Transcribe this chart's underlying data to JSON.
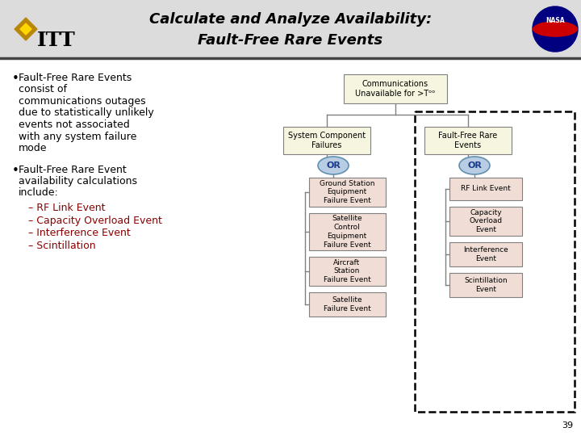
{
  "title_line1": "Calculate and Analyze Availability:",
  "title_line2": "Fault-Free Rare Events",
  "slide_bg": "#ffffff",
  "header_bg": "#e0e0e0",
  "box_fill_light": "#f5f5e0",
  "box_fill_pink": "#f0ddd5",
  "or_fill": "#b8cce4",
  "bullet1_lines": [
    "Fault-Free Rare Events",
    "consist of",
    "communications outages",
    "due to statistically unlikely",
    "events not associated",
    "with any system failure",
    "mode"
  ],
  "bullet2_lines": [
    "Fault-Free Rare Event",
    "availability calculations",
    "include:"
  ],
  "sub_bullets": [
    "– RF Link Event",
    "– Capacity Overload Event",
    "– Interference Event",
    "– Scintillation"
  ],
  "root_text": "Communications\nUnavailable for >Tᵒᵒ",
  "left_box_text": "System Component\nFailures",
  "right_box_text": "Fault-Free Rare\nEvents",
  "left_children": [
    "Ground Station\nEquipment\nFailure Event",
    "Satellite\nControl\nEquipment\nFailure Event",
    "Aircraft\nStation\nFailure Event",
    "Satellite\nFailure Event"
  ],
  "right_children": [
    "RF Link Event",
    "Capacity\nOverload\nEvent",
    "Interference\nEvent",
    "Scintillation\nEvent"
  ],
  "footer_num": "39",
  "edge_color": "#808080",
  "line_color": "#808080"
}
